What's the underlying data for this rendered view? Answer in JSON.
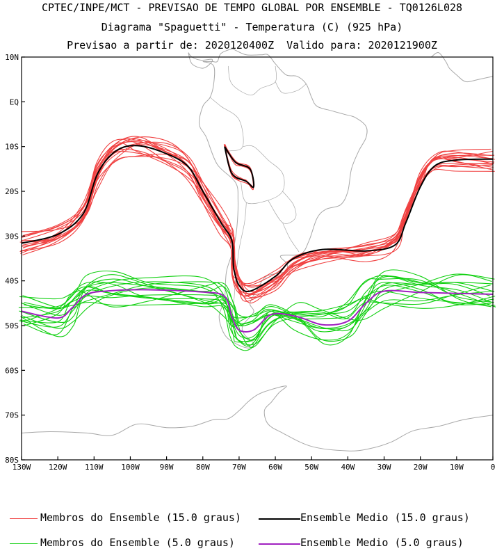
{
  "header": {
    "line1": "CPTEC/INPE/MCT - PREVISAO DE TEMPO GLOBAL POR ENSEMBLE - TQ0126L028",
    "line2": "Diagrama \"Spaguetti\" - Temperatura (C) (925 hPa)",
    "line3": "Previsao a partir de: 2020120400Z  Valido para: 2020121900Z"
  },
  "map": {
    "lon_range": [
      -130,
      0
    ],
    "lat_range": [
      -80,
      10
    ],
    "lat_ticks": [
      "10N",
      "EQ",
      "10S",
      "20S",
      "30S",
      "40S",
      "50S",
      "60S",
      "70S",
      "80S"
    ],
    "lon_ticks": [
      "130W",
      "120W",
      "110W",
      "100W",
      "90W",
      "80W",
      "70W",
      "60W",
      "50W",
      "40W",
      "30W",
      "20W",
      "10W",
      "0"
    ],
    "colors": {
      "coast": "#a8a8a8",
      "member15": "#f04040",
      "mean15": "#000000",
      "member5": "#10d010",
      "mean5": "#a020c0"
    },
    "mean15_path": [
      [
        -130,
        -31.6
      ],
      [
        -120,
        -29.6
      ],
      [
        -113,
        -25
      ],
      [
        -109,
        -16
      ],
      [
        -104,
        -11
      ],
      [
        -98,
        -9.8
      ],
      [
        -90,
        -11.6
      ],
      [
        -84,
        -14.5
      ],
      [
        -80,
        -20
      ],
      [
        -75,
        -27
      ],
      [
        -72,
        -31
      ],
      [
        -71.5,
        -37
      ],
      [
        -70,
        -41
      ],
      [
        -67,
        -42.3
      ],
      [
        -60,
        -39
      ],
      [
        -55,
        -35
      ],
      [
        -47,
        -33
      ],
      [
        -35,
        -33.3
      ],
      [
        -27,
        -32
      ],
      [
        -24,
        -27
      ],
      [
        -20,
        -19
      ],
      [
        -16,
        -14.3
      ],
      [
        -10,
        -13
      ],
      [
        0,
        -12.8
      ]
    ],
    "mean15_inland": [
      [
        -74,
        -10
      ],
      [
        -71,
        -13.5
      ],
      [
        -67,
        -15
      ],
      [
        -66,
        -19
      ],
      [
        -68,
        -17.8
      ],
      [
        -72,
        -16
      ],
      [
        -74,
        -10
      ]
    ],
    "mean5_path": [
      [
        -130,
        -46.8
      ],
      [
        -120,
        -48.3
      ],
      [
        -116,
        -46
      ],
      [
        -112,
        -43
      ],
      [
        -105,
        -42.2
      ],
      [
        -95,
        -42
      ],
      [
        -80,
        -42.5
      ],
      [
        -74,
        -43.5
      ],
      [
        -72,
        -48
      ],
      [
        -70,
        -51
      ],
      [
        -66,
        -51
      ],
      [
        -61,
        -47.5
      ],
      [
        -54,
        -48
      ],
      [
        -47,
        -49.8
      ],
      [
        -40,
        -49
      ],
      [
        -35,
        -45
      ],
      [
        -30,
        -42.3
      ],
      [
        -20,
        -42.6
      ],
      [
        -10,
        -42.8
      ],
      [
        0,
        -43
      ]
    ]
  },
  "legend": {
    "item1": "Membros do Ensemble (15.0 graus)",
    "item2": "Ensemble Medio (15.0 graus)",
    "item3": "Membros do Ensemble (5.0 graus)",
    "item4": "Ensemble Medio (5.0 graus)"
  }
}
